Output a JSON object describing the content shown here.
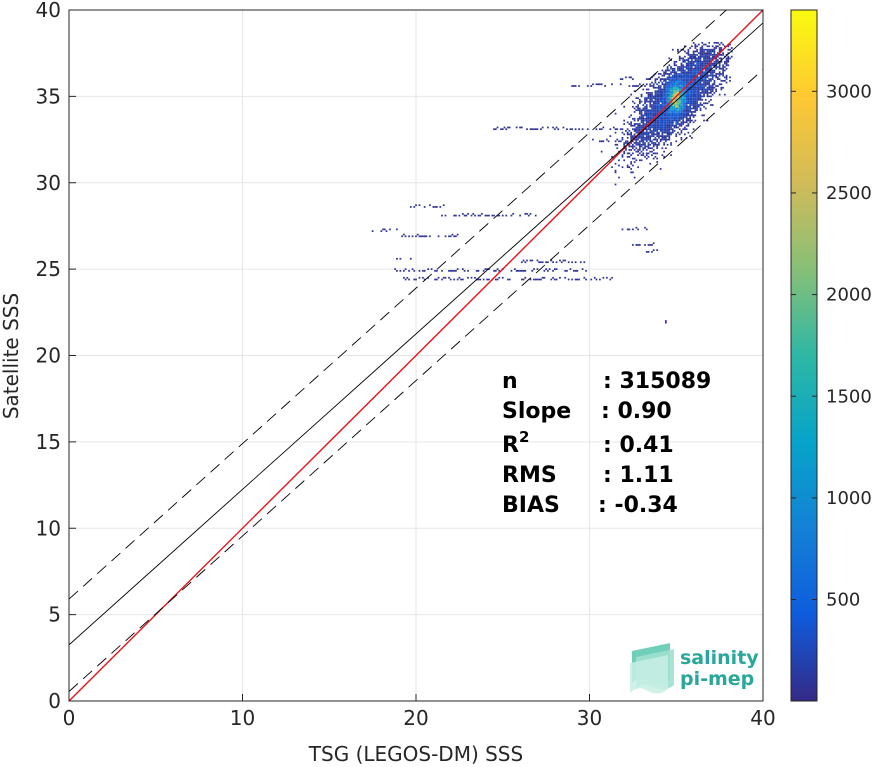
{
  "chart_data": {
    "type": "heatmap",
    "xlabel": "TSG (LEGOS-DM) SSS",
    "ylabel": "Satellite SSS",
    "xlim": [
      0,
      40
    ],
    "ylim": [
      0,
      40
    ],
    "xticks": [
      0,
      10,
      20,
      30,
      40
    ],
    "yticks": [
      0,
      5,
      10,
      15,
      20,
      25,
      30,
      35,
      40
    ],
    "grid": true,
    "colormap": "parula",
    "colorbar": {
      "range": [
        1,
        3400
      ],
      "ticks": [
        500,
        1000,
        1500,
        2000,
        2500,
        3000
      ],
      "placement": "right"
    },
    "density_peak": {
      "x": 35.0,
      "y": 34.9
    },
    "lines": [
      {
        "kind": "identity",
        "slope": 1.0,
        "intercept": 0.0,
        "color": "#e8141b",
        "style": "solid"
      },
      {
        "kind": "regression",
        "slope": 0.9,
        "intercept": 3.25,
        "color": "#000000",
        "style": "solid"
      },
      {
        "kind": "regression-upper",
        "slope": 0.9,
        "intercept": 5.9,
        "color": "#000000",
        "style": "dashed"
      },
      {
        "kind": "regression-lower",
        "slope": 0.9,
        "intercept": 0.55,
        "color": "#000000",
        "style": "dashed"
      }
    ],
    "stats": [
      {
        "label": "n",
        "value": ": 315089"
      },
      {
        "label": "Slope",
        "value": ": 0.90"
      },
      {
        "label": "R",
        "sup": "2",
        "value": ": 0.41"
      },
      {
        "label": "RMS",
        "value": ": 1.11"
      },
      {
        "label": "BIAS",
        "value": ": -0.34"
      }
    ]
  },
  "logo": {
    "line1": "salinity",
    "line2": "pi-mep"
  }
}
